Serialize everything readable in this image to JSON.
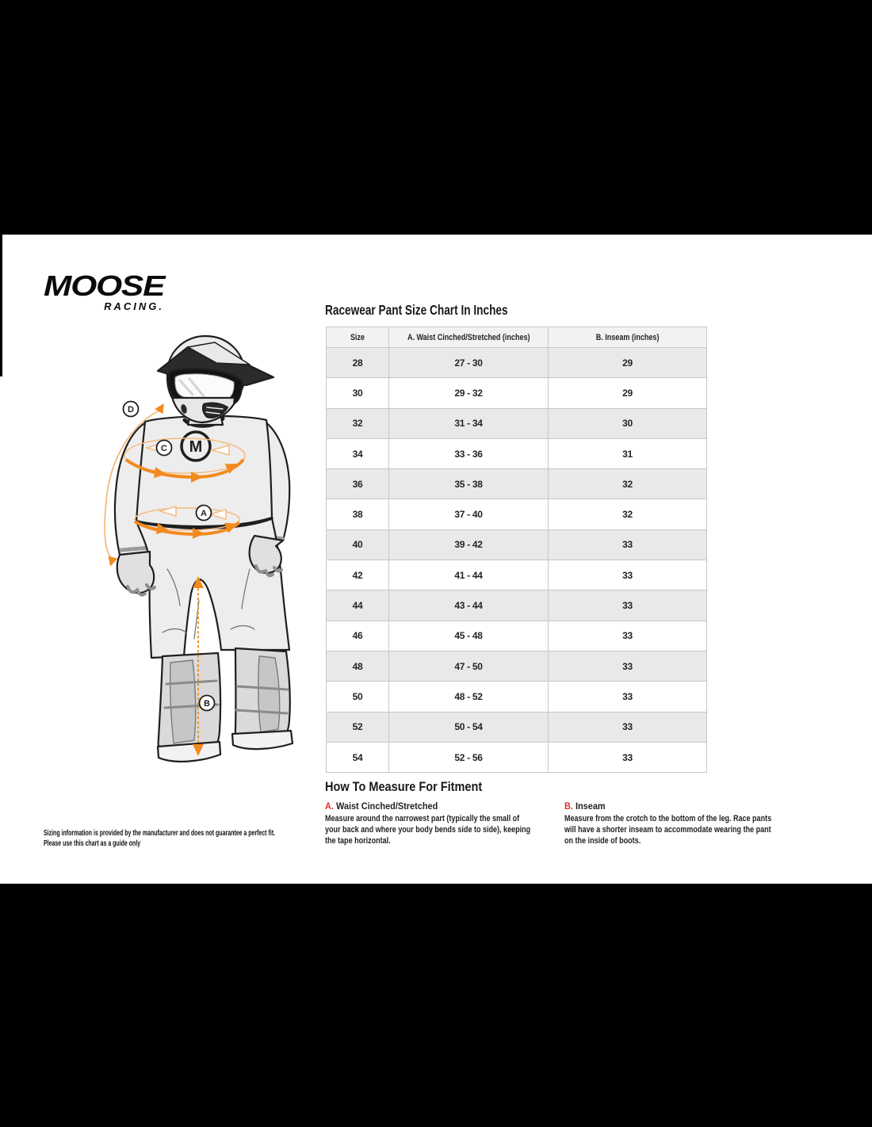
{
  "brand": {
    "logo_line1": "MOOSE",
    "logo_line2": "RACING."
  },
  "size_chart": {
    "title": "Racewear Pant Size Chart In Inches",
    "columns": [
      "Size",
      "A. Waist Cinched/Stretched (inches)",
      "B. Inseam (inches)"
    ],
    "rows": [
      [
        "28",
        "27 - 30",
        "29"
      ],
      [
        "30",
        "29 - 32",
        "29"
      ],
      [
        "32",
        "31 - 34",
        "30"
      ],
      [
        "34",
        "33 - 36",
        "31"
      ],
      [
        "36",
        "35 - 38",
        "32"
      ],
      [
        "38",
        "37 - 40",
        "32"
      ],
      [
        "40",
        "39 - 42",
        "33"
      ],
      [
        "42",
        "41 - 44",
        "33"
      ],
      [
        "44",
        "43 - 44",
        "33"
      ],
      [
        "46",
        "45 - 48",
        "33"
      ],
      [
        "48",
        "47 - 50",
        "33"
      ],
      [
        "50",
        "48 - 52",
        "33"
      ],
      [
        "52",
        "50 - 54",
        "33"
      ],
      [
        "54",
        "52 - 56",
        "33"
      ]
    ]
  },
  "how_to_measure": {
    "title": "How To Measure For Fitment",
    "sections": [
      {
        "letter": "A.",
        "heading": "Waist Cinched/Stretched",
        "lines": [
          "Measure around the narrowest part (typically the small of",
          "your back and where your body bends side to side), keeping",
          "the tape horizontal."
        ]
      },
      {
        "letter": "B.",
        "heading": "Inseam",
        "lines": [
          "Measure from the crotch to the bottom of the leg. Race pants",
          "will have a shorter inseam to accommodate wearing the pant",
          "on the inside of boots."
        ]
      }
    ]
  },
  "disclaimer_lines": [
    "Sizing information is provided by the manufacturer and does not guarantee a perfect fit.",
    "Please use this chart as a guide only"
  ],
  "figure": {
    "markers": {
      "d": "D",
      "c": "C",
      "a": "A",
      "b": "B"
    },
    "chest_logo_letter": "M"
  },
  "colors": {
    "accent_orange": "#F28A1E",
    "accent_orange_light": "#F6BB80",
    "accent_red": "#E0312D",
    "row_shaded": "#E9E9E9",
    "header_bg": "#F2F2F2",
    "table_border": "#C7C7C7",
    "letterbox": "#000000"
  }
}
